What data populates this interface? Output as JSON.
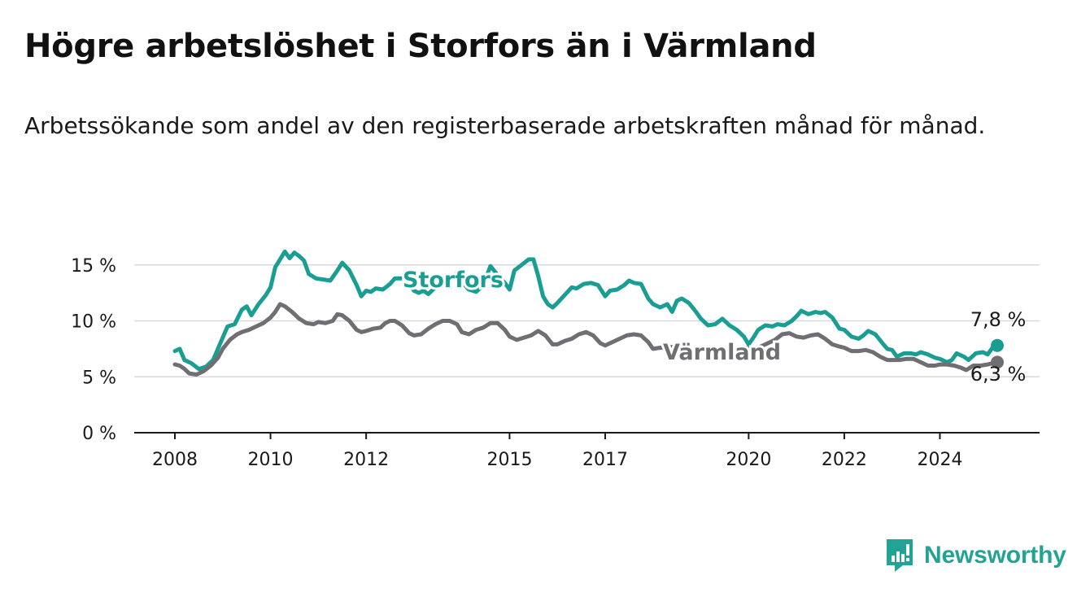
{
  "header": {
    "title": "Högre arbetslöshet i Storfors än i Värmland",
    "subtitle": "Arbetssökande som andel av den registerbaserade arbetskraften månad för månad."
  },
  "brand": {
    "name": "Newsworthy",
    "icon": "newsworthy-logo-icon",
    "color": "#23a394"
  },
  "chart_data": {
    "type": "line",
    "title": "Högre arbetslöshet i Storfors än i Värmland",
    "subtitle": "Arbetssökande som andel av den registerbaserade arbetskraften månad för månad.",
    "y_unit": "%",
    "ylim": [
      0,
      16
    ],
    "y_ticks": [
      0,
      5,
      10,
      15
    ],
    "y_tick_labels": [
      "0 %",
      "5 %",
      "10 %",
      "15 %"
    ],
    "x_ticks": [
      2008,
      2010,
      2012,
      2015,
      2017,
      2020,
      2022,
      2024
    ],
    "x_tick_labels": [
      "2008",
      "2010",
      "2012",
      "2015",
      "2017",
      "2020",
      "2022",
      "2024"
    ],
    "xlim": [
      2007.5,
      2025.9
    ],
    "grid": "horizontal",
    "legend": "inline labels",
    "series": [
      {
        "name": "Storfors",
        "color": "#1a9e93",
        "end_label": "7,8 %",
        "points": [
          [
            2008.0,
            7.3
          ],
          [
            2008.1,
            7.5
          ],
          [
            2008.2,
            6.5
          ],
          [
            2008.35,
            6.2
          ],
          [
            2008.5,
            5.7
          ],
          [
            2008.65,
            5.9
          ],
          [
            2008.8,
            6.5
          ],
          [
            2008.9,
            7.5
          ],
          [
            2009.0,
            8.5
          ],
          [
            2009.1,
            9.5
          ],
          [
            2009.25,
            9.7
          ],
          [
            2009.4,
            11.0
          ],
          [
            2009.5,
            11.3
          ],
          [
            2009.6,
            10.5
          ],
          [
            2009.75,
            11.5
          ],
          [
            2009.9,
            12.3
          ],
          [
            2010.0,
            13.0
          ],
          [
            2010.1,
            14.8
          ],
          [
            2010.2,
            15.5
          ],
          [
            2010.3,
            16.2
          ],
          [
            2010.4,
            15.6
          ],
          [
            2010.5,
            16.1
          ],
          [
            2010.6,
            15.8
          ],
          [
            2010.7,
            15.4
          ],
          [
            2010.8,
            14.2
          ],
          [
            2010.95,
            13.8
          ],
          [
            2011.1,
            13.7
          ],
          [
            2011.25,
            13.6
          ],
          [
            2011.4,
            14.5
          ],
          [
            2011.5,
            15.2
          ],
          [
            2011.65,
            14.5
          ],
          [
            2011.8,
            13.2
          ],
          [
            2011.9,
            12.2
          ],
          [
            2012.0,
            12.7
          ],
          [
            2012.1,
            12.6
          ],
          [
            2012.2,
            12.9
          ],
          [
            2012.35,
            12.8
          ],
          [
            2012.5,
            13.3
          ],
          [
            2012.6,
            13.8
          ],
          [
            2012.75,
            13.8
          ],
          [
            2012.9,
            13.3
          ],
          [
            2013.0,
            12.7
          ],
          [
            2013.1,
            12.5
          ],
          [
            2013.2,
            12.7
          ],
          [
            2013.3,
            12.4
          ],
          [
            2013.4,
            12.8
          ],
          [
            2013.6,
            13.5
          ],
          [
            2013.8,
            13.8
          ],
          [
            2013.9,
            14.3
          ],
          [
            2014.0,
            13.5
          ],
          [
            2014.15,
            12.8
          ],
          [
            2014.3,
            12.6
          ],
          [
            2014.45,
            13.2
          ],
          [
            2014.6,
            14.9
          ],
          [
            2014.75,
            14.1
          ],
          [
            2014.9,
            13.4
          ],
          [
            2015.0,
            12.8
          ],
          [
            2015.1,
            14.5
          ],
          [
            2015.25,
            15.0
          ],
          [
            2015.4,
            15.5
          ],
          [
            2015.5,
            15.5
          ],
          [
            2015.6,
            14.0
          ],
          [
            2015.7,
            12.2
          ],
          [
            2015.8,
            11.5
          ],
          [
            2015.9,
            11.2
          ],
          [
            2016.0,
            11.6
          ],
          [
            2016.15,
            12.3
          ],
          [
            2016.3,
            13.0
          ],
          [
            2016.4,
            12.9
          ],
          [
            2016.55,
            13.3
          ],
          [
            2016.7,
            13.4
          ],
          [
            2016.85,
            13.2
          ],
          [
            2017.0,
            12.2
          ],
          [
            2017.1,
            12.7
          ],
          [
            2017.25,
            12.8
          ],
          [
            2017.4,
            13.2
          ],
          [
            2017.5,
            13.6
          ],
          [
            2017.6,
            13.4
          ],
          [
            2017.75,
            13.3
          ],
          [
            2017.9,
            12.0
          ],
          [
            2018.0,
            11.5
          ],
          [
            2018.15,
            11.2
          ],
          [
            2018.3,
            11.5
          ],
          [
            2018.4,
            10.8
          ],
          [
            2018.5,
            11.8
          ],
          [
            2018.6,
            12.0
          ],
          [
            2018.75,
            11.6
          ],
          [
            2018.9,
            10.8
          ],
          [
            2019.0,
            10.2
          ],
          [
            2019.15,
            9.6
          ],
          [
            2019.3,
            9.7
          ],
          [
            2019.45,
            10.2
          ],
          [
            2019.6,
            9.6
          ],
          [
            2019.75,
            9.2
          ],
          [
            2019.9,
            8.6
          ],
          [
            2020.0,
            7.9
          ],
          [
            2020.1,
            8.5
          ],
          [
            2020.2,
            9.2
          ],
          [
            2020.35,
            9.6
          ],
          [
            2020.5,
            9.5
          ],
          [
            2020.6,
            9.7
          ],
          [
            2020.75,
            9.6
          ],
          [
            2020.9,
            10.0
          ],
          [
            2021.0,
            10.4
          ],
          [
            2021.1,
            10.9
          ],
          [
            2021.25,
            10.6
          ],
          [
            2021.4,
            10.8
          ],
          [
            2021.5,
            10.7
          ],
          [
            2021.6,
            10.8
          ],
          [
            2021.75,
            10.3
          ],
          [
            2021.9,
            9.3
          ],
          [
            2022.0,
            9.2
          ],
          [
            2022.15,
            8.6
          ],
          [
            2022.3,
            8.4
          ],
          [
            2022.4,
            8.7
          ],
          [
            2022.5,
            9.1
          ],
          [
            2022.65,
            8.8
          ],
          [
            2022.8,
            8.0
          ],
          [
            2022.9,
            7.5
          ],
          [
            2023.0,
            7.4
          ],
          [
            2023.1,
            6.8
          ],
          [
            2023.25,
            7.1
          ],
          [
            2023.4,
            7.1
          ],
          [
            2023.5,
            7.0
          ],
          [
            2023.6,
            7.2
          ],
          [
            2023.75,
            7.0
          ],
          [
            2023.9,
            6.7
          ],
          [
            2024.0,
            6.6
          ],
          [
            2024.15,
            6.3
          ],
          [
            2024.25,
            6.5
          ],
          [
            2024.35,
            7.1
          ],
          [
            2024.5,
            6.8
          ],
          [
            2024.6,
            6.5
          ],
          [
            2024.75,
            7.1
          ],
          [
            2024.9,
            7.2
          ],
          [
            2025.0,
            7.0
          ],
          [
            2025.1,
            7.6
          ],
          [
            2025.2,
            7.8
          ]
        ]
      },
      {
        "name": "Värmland",
        "color": "#6e6e73",
        "end_label": "6,3 %",
        "points": [
          [
            2008.0,
            6.1
          ],
          [
            2008.1,
            6.0
          ],
          [
            2008.2,
            5.7
          ],
          [
            2008.3,
            5.3
          ],
          [
            2008.45,
            5.2
          ],
          [
            2008.6,
            5.5
          ],
          [
            2008.75,
            6.0
          ],
          [
            2008.9,
            6.7
          ],
          [
            2009.0,
            7.5
          ],
          [
            2009.15,
            8.3
          ],
          [
            2009.3,
            8.8
          ],
          [
            2009.4,
            9.0
          ],
          [
            2009.55,
            9.2
          ],
          [
            2009.7,
            9.5
          ],
          [
            2009.85,
            9.8
          ],
          [
            2010.0,
            10.3
          ],
          [
            2010.1,
            10.8
          ],
          [
            2010.2,
            11.5
          ],
          [
            2010.3,
            11.3
          ],
          [
            2010.45,
            10.8
          ],
          [
            2010.6,
            10.2
          ],
          [
            2010.75,
            9.8
          ],
          [
            2010.9,
            9.7
          ],
          [
            2011.0,
            9.9
          ],
          [
            2011.15,
            9.8
          ],
          [
            2011.3,
            10.0
          ],
          [
            2011.4,
            10.6
          ],
          [
            2011.5,
            10.5
          ],
          [
            2011.65,
            10.0
          ],
          [
            2011.8,
            9.2
          ],
          [
            2011.9,
            9.0
          ],
          [
            2012.0,
            9.1
          ],
          [
            2012.15,
            9.3
          ],
          [
            2012.3,
            9.4
          ],
          [
            2012.4,
            9.8
          ],
          [
            2012.5,
            10.0
          ],
          [
            2012.6,
            10.0
          ],
          [
            2012.75,
            9.6
          ],
          [
            2012.9,
            8.9
          ],
          [
            2013.0,
            8.7
          ],
          [
            2013.15,
            8.8
          ],
          [
            2013.3,
            9.3
          ],
          [
            2013.45,
            9.7
          ],
          [
            2013.6,
            10.0
          ],
          [
            2013.75,
            10.0
          ],
          [
            2013.9,
            9.7
          ],
          [
            2014.0,
            9.0
          ],
          [
            2014.15,
            8.8
          ],
          [
            2014.3,
            9.2
          ],
          [
            2014.45,
            9.4
          ],
          [
            2014.6,
            9.8
          ],
          [
            2014.75,
            9.8
          ],
          [
            2014.9,
            9.2
          ],
          [
            2015.0,
            8.6
          ],
          [
            2015.15,
            8.3
          ],
          [
            2015.3,
            8.5
          ],
          [
            2015.45,
            8.7
          ],
          [
            2015.6,
            9.1
          ],
          [
            2015.75,
            8.7
          ],
          [
            2015.9,
            7.9
          ],
          [
            2016.0,
            7.9
          ],
          [
            2016.15,
            8.2
          ],
          [
            2016.3,
            8.4
          ],
          [
            2016.45,
            8.8
          ],
          [
            2016.6,
            9.0
          ],
          [
            2016.75,
            8.7
          ],
          [
            2016.9,
            8.0
          ],
          [
            2017.0,
            7.8
          ],
          [
            2017.15,
            8.1
          ],
          [
            2017.3,
            8.4
          ],
          [
            2017.45,
            8.7
          ],
          [
            2017.6,
            8.8
          ],
          [
            2017.75,
            8.7
          ],
          [
            2017.9,
            8.1
          ],
          [
            2018.0,
            7.5
          ],
          [
            2018.15,
            7.6
          ],
          [
            2018.3,
            7.6
          ],
          [
            2018.45,
            7.7
          ],
          [
            2018.6,
            7.9
          ],
          [
            2018.7,
            7.7
          ],
          [
            2019.95,
            7.6
          ],
          [
            2020.1,
            7.5
          ],
          [
            2020.25,
            7.7
          ],
          [
            2020.4,
            8.0
          ],
          [
            2020.55,
            8.3
          ],
          [
            2020.7,
            8.8
          ],
          [
            2020.85,
            8.9
          ],
          [
            2021.0,
            8.6
          ],
          [
            2021.15,
            8.5
          ],
          [
            2021.3,
            8.7
          ],
          [
            2021.45,
            8.8
          ],
          [
            2021.6,
            8.4
          ],
          [
            2021.75,
            7.9
          ],
          [
            2021.9,
            7.7
          ],
          [
            2022.0,
            7.6
          ],
          [
            2022.15,
            7.3
          ],
          [
            2022.3,
            7.3
          ],
          [
            2022.45,
            7.4
          ],
          [
            2022.6,
            7.2
          ],
          [
            2022.75,
            6.8
          ],
          [
            2022.9,
            6.5
          ],
          [
            2023.0,
            6.5
          ],
          [
            2023.15,
            6.5
          ],
          [
            2023.3,
            6.6
          ],
          [
            2023.45,
            6.6
          ],
          [
            2023.6,
            6.3
          ],
          [
            2023.75,
            6.0
          ],
          [
            2023.9,
            6.0
          ],
          [
            2024.0,
            6.1
          ],
          [
            2024.15,
            6.1
          ],
          [
            2024.3,
            6.0
          ],
          [
            2024.45,
            5.8
          ],
          [
            2024.55,
            5.6
          ],
          [
            2024.7,
            6.0
          ],
          [
            2024.85,
            6.0
          ],
          [
            2025.0,
            6.1
          ],
          [
            2025.2,
            6.3
          ]
        ]
      }
    ]
  }
}
